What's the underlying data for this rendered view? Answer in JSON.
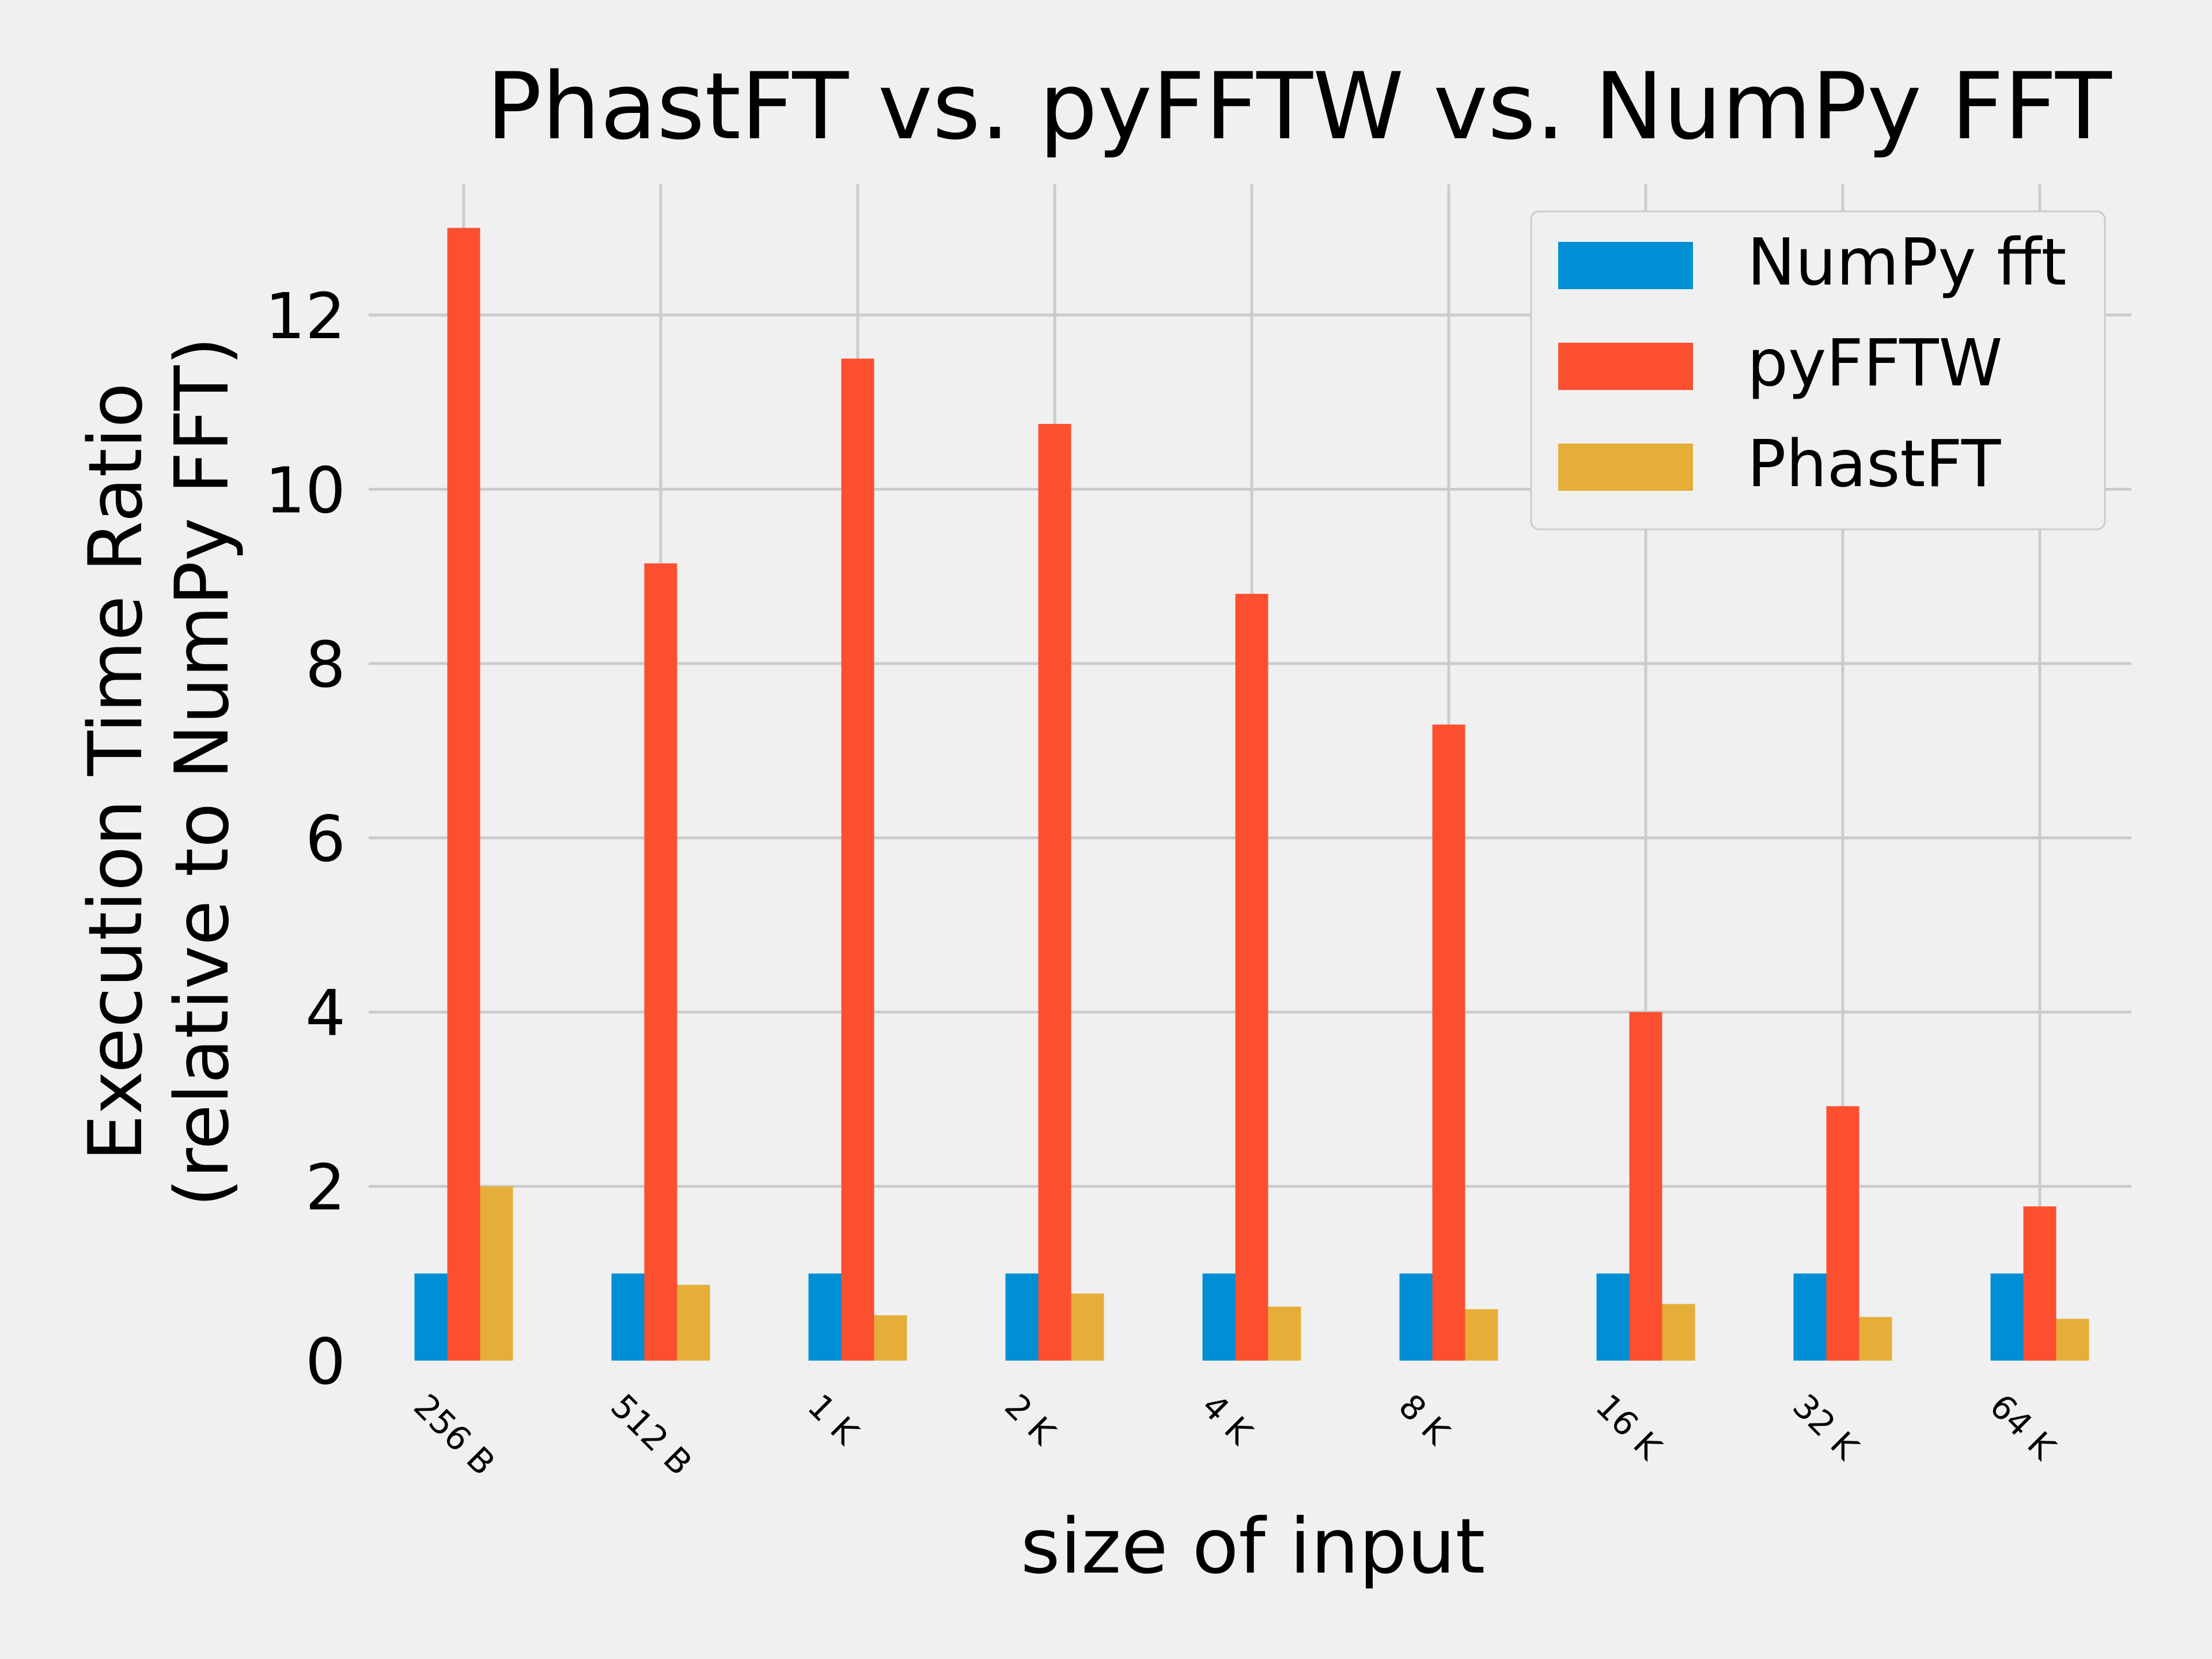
{
  "chart_data": {
    "type": "bar",
    "title": "PhastFT vs. pyFFTW vs. NumPy FFT",
    "xlabel": "size of input",
    "ylabel": [
      "Execution Time Ratio",
      "(relative to NumPy FFT)"
    ],
    "categories": [
      "256 B",
      "512 B",
      "1 K",
      "2 K",
      "4 K",
      "8 K",
      "16 K",
      "32 K",
      "64 K"
    ],
    "series": [
      {
        "name": "NumPy fft",
        "color": "#008fd5",
        "values": [
          1,
          1,
          1,
          1,
          1,
          1,
          1,
          1,
          1
        ]
      },
      {
        "name": "pyFFTW",
        "color": "#fc4f30",
        "values": [
          13.0,
          9.15,
          11.5,
          10.75,
          8.8,
          7.3,
          4.0,
          2.92,
          1.77
        ]
      },
      {
        "name": "PhastFT",
        "color": "#e5ae38",
        "values": [
          2.0,
          0.87,
          0.52,
          0.77,
          0.62,
          0.59,
          0.65,
          0.5,
          0.48
        ]
      }
    ],
    "ylim": [
      0,
      13.5
    ],
    "yticks": [
      0,
      2,
      4,
      6,
      8,
      10,
      12
    ],
    "grid": true,
    "legend_position": "top-right"
  },
  "colors": {
    "background": "#f0f0f0",
    "grid": "#cbcbcb"
  }
}
